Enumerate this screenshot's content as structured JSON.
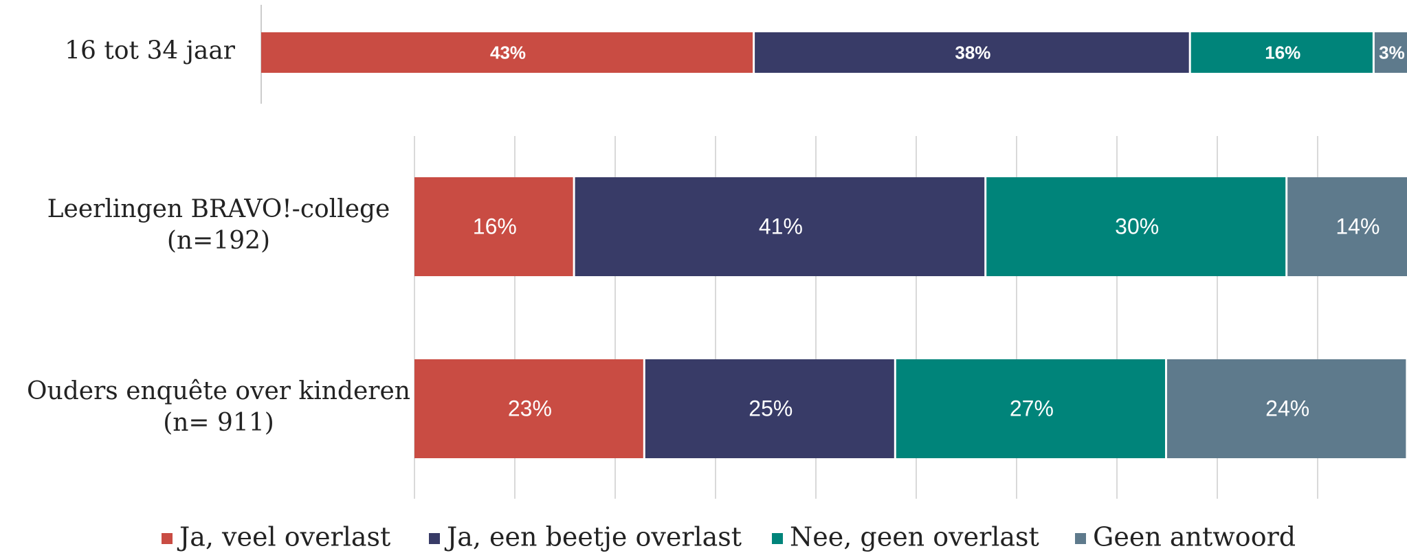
{
  "chart_data": [
    {
      "type": "stacked-bar",
      "categories": [
        [
          "16 tot 34 jaar"
        ]
      ],
      "xlim": [
        0,
        100
      ],
      "series": [
        {
          "color": "#c94c43",
          "values": [
            43
          ],
          "value_labels": [
            "43%"
          ]
        },
        {
          "color": "#383b67",
          "values": [
            38
          ],
          "value_labels": [
            "38%"
          ]
        },
        {
          "color": "#00847a",
          "values": [
            16
          ],
          "value_labels": [
            "16%"
          ]
        },
        {
          "color": "#5e7a8c",
          "values": [
            3
          ],
          "value_labels": [
            "3%"
          ]
        }
      ]
    },
    {
      "type": "stacked-bar",
      "categories": [
        [
          "Leerlingen BRAVO!-college",
          "(n=192)"
        ],
        [
          "Ouders enquête over kinderen",
          "(n= 911)"
        ]
      ],
      "xlim": [
        0,
        100
      ],
      "xticks": [
        0,
        10,
        20,
        30,
        40,
        50,
        60,
        70,
        80,
        90
      ],
      "grid": true,
      "legend": "bottom",
      "series": [
        {
          "name": "Ja, veel overlast",
          "color": "#c94c43",
          "values": [
            16,
            23
          ],
          "value_labels": [
            "16%",
            "23%"
          ]
        },
        {
          "name": "Ja, een beetje overlast",
          "color": "#383b67",
          "values": [
            41,
            25
          ],
          "value_labels": [
            "41%",
            "25%"
          ]
        },
        {
          "name": "Nee, geen overlast",
          "color": "#00847a",
          "values": [
            30,
            27
          ],
          "value_labels": [
            "30%",
            "27%"
          ]
        },
        {
          "name": "Geen antwoord",
          "color": "#5e7a8c",
          "values": [
            14,
            24
          ],
          "value_labels": [
            "14%",
            "24%"
          ]
        }
      ]
    }
  ]
}
